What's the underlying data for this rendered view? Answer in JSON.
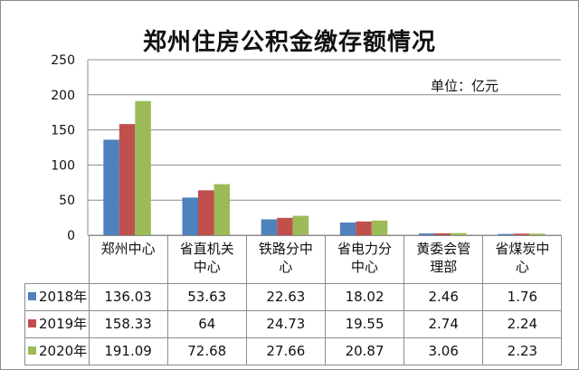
{
  "chart_data": {
    "type": "bar",
    "title": "郑州住房公积金缴存额情况",
    "unit": "单位：亿元",
    "categories": [
      "郑州中心",
      "省直机关中心",
      "铁路分中心",
      "省电力分中心",
      "黄委会管理部",
      "省煤炭中心"
    ],
    "category_display": [
      "郑州中心",
      "省直机关\n中心",
      "铁路分中\n心",
      "省电力分\n中心",
      "黄委会管\n理部",
      "省煤炭中\n心"
    ],
    "series": [
      {
        "name": "2018年",
        "color": "#4f81bd",
        "values": [
          136.03,
          53.63,
          22.63,
          18.02,
          2.46,
          1.76
        ],
        "labels": [
          "136.03",
          "53.63",
          "22.63",
          "18.02",
          "2.46",
          "1.76"
        ]
      },
      {
        "name": "2019年",
        "color": "#c0504d",
        "values": [
          158.33,
          64,
          24.73,
          19.55,
          2.74,
          2.24
        ],
        "labels": [
          "158.33",
          "64",
          "24.73",
          "19.55",
          "2.74",
          "2.24"
        ]
      },
      {
        "name": "2020年",
        "color": "#9bbb59",
        "values": [
          191.09,
          72.68,
          27.66,
          20.87,
          3.06,
          2.23
        ],
        "labels": [
          "191.09",
          "72.68",
          "27.66",
          "20.87",
          "3.06",
          "2.23"
        ]
      }
    ],
    "ylim": [
      0,
      250
    ],
    "yticks": [
      "0",
      "50",
      "100",
      "150",
      "200",
      "250"
    ],
    "grid": true,
    "legend": "data-table"
  }
}
